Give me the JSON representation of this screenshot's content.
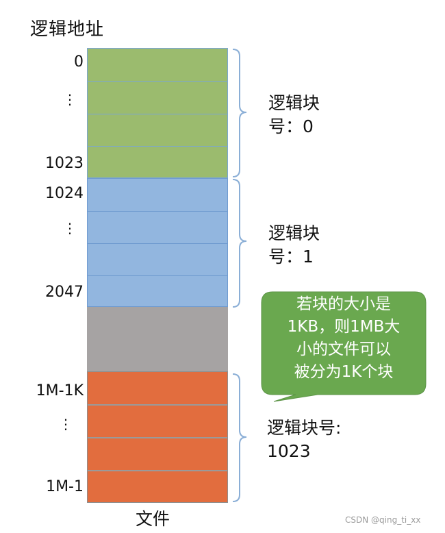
{
  "title": "逻辑地址",
  "addresses": {
    "a0": "0",
    "a1023": "1023",
    "a1024": "1024",
    "a2047": "2047",
    "a1m1k": "1M-1K",
    "a1m1": "1M-1"
  },
  "ellipsis": "⋮",
  "labels": {
    "block0_line1": "逻辑块",
    "block0_line2": "号：0",
    "block1_line1": "逻辑块",
    "block1_line2": "号：1",
    "block1023_line1": "逻辑块号:",
    "block1023_line2": "1023"
  },
  "callout": {
    "line1": "若块的大小是",
    "line2": "1KB，则1MB大",
    "line3": "小的文件可以",
    "line4": "被分为1K个块"
  },
  "footer": "文件",
  "watermark": "CSDN @qing_ti_xx",
  "colors": {
    "green": "#9bbb6e",
    "blue": "#92b6df",
    "gray": "#a6a3a3",
    "orange": "#e26d3e",
    "callout": "#6aa84f",
    "brace": "#8aaed6"
  }
}
